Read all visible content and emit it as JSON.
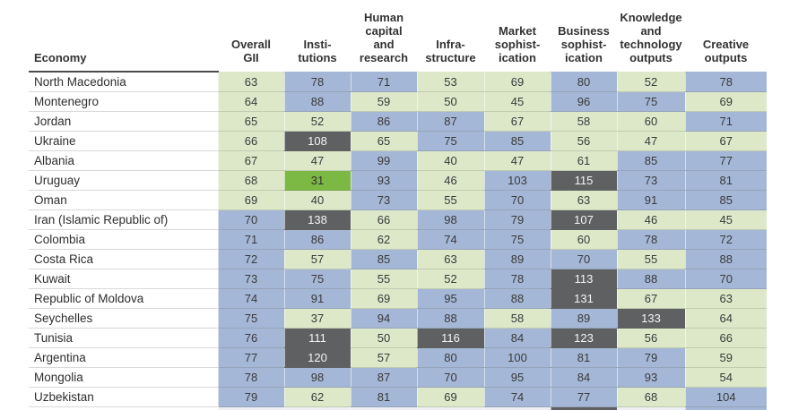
{
  "colors": {
    "green": "#dde8c9",
    "blue": "#a5b7d6",
    "dark": "#5f6062",
    "bright": "#7cb944",
    "pale": "#edeff2",
    "rule_dark": "#4a4a4c",
    "rule_accent": "#94b272"
  },
  "table": {
    "columns": [
      {
        "key": "economy",
        "label": "Economy"
      },
      {
        "key": "overall_gii",
        "label": "Overall\nGII"
      },
      {
        "key": "institutions",
        "label": "Insti-\ntutions"
      },
      {
        "key": "human_capital_research",
        "label": "Human\ncapital\nand\nresearch"
      },
      {
        "key": "infrastructure",
        "label": "Infra-\nstructure"
      },
      {
        "key": "market_sophistication",
        "label": "Market\nsophist-\nication"
      },
      {
        "key": "business_sophistication",
        "label": "Business\nsophist-\nication"
      },
      {
        "key": "knowledge_technology_outputs",
        "label": "Knowledge\nand\ntechnology\noutputs"
      },
      {
        "key": "creative_outputs",
        "label": "Creative\noutputs"
      }
    ],
    "rows": [
      {
        "economy": "North Macedonia",
        "cells": [
          {
            "value": 63,
            "band": "green"
          },
          {
            "value": 78,
            "band": "blue"
          },
          {
            "value": 71,
            "band": "blue"
          },
          {
            "value": 53,
            "band": "green"
          },
          {
            "value": 69,
            "band": "green"
          },
          {
            "value": 80,
            "band": "blue"
          },
          {
            "value": 52,
            "band": "green"
          },
          {
            "value": 78,
            "band": "blue"
          }
        ]
      },
      {
        "economy": "Montenegro",
        "cells": [
          {
            "value": 64,
            "band": "green"
          },
          {
            "value": 88,
            "band": "blue"
          },
          {
            "value": 59,
            "band": "green"
          },
          {
            "value": 50,
            "band": "green"
          },
          {
            "value": 45,
            "band": "green"
          },
          {
            "value": 96,
            "band": "blue"
          },
          {
            "value": 75,
            "band": "blue"
          },
          {
            "value": 69,
            "band": "green"
          }
        ]
      },
      {
        "economy": "Jordan",
        "cells": [
          {
            "value": 65,
            "band": "green"
          },
          {
            "value": 52,
            "band": "green"
          },
          {
            "value": 86,
            "band": "blue"
          },
          {
            "value": 87,
            "band": "blue"
          },
          {
            "value": 67,
            "band": "green"
          },
          {
            "value": 58,
            "band": "green"
          },
          {
            "value": 60,
            "band": "green"
          },
          {
            "value": 71,
            "band": "blue"
          }
        ]
      },
      {
        "economy": "Ukraine",
        "cells": [
          {
            "value": 66,
            "band": "green"
          },
          {
            "value": 108,
            "band": "dark"
          },
          {
            "value": 65,
            "band": "green"
          },
          {
            "value": 75,
            "band": "blue"
          },
          {
            "value": 85,
            "band": "blue"
          },
          {
            "value": 56,
            "band": "green"
          },
          {
            "value": 47,
            "band": "green"
          },
          {
            "value": 67,
            "band": "green"
          }
        ]
      },
      {
        "economy": "Albania",
        "cells": [
          {
            "value": 67,
            "band": "green"
          },
          {
            "value": 47,
            "band": "green"
          },
          {
            "value": 99,
            "band": "blue"
          },
          {
            "value": 40,
            "band": "green"
          },
          {
            "value": 47,
            "band": "green"
          },
          {
            "value": 61,
            "band": "green"
          },
          {
            "value": 85,
            "band": "blue"
          },
          {
            "value": 77,
            "band": "blue"
          }
        ]
      },
      {
        "economy": "Uruguay",
        "cells": [
          {
            "value": 68,
            "band": "green"
          },
          {
            "value": 31,
            "band": "bright"
          },
          {
            "value": 93,
            "band": "blue"
          },
          {
            "value": 46,
            "band": "green"
          },
          {
            "value": 103,
            "band": "blue"
          },
          {
            "value": 115,
            "band": "dark"
          },
          {
            "value": 73,
            "band": "blue"
          },
          {
            "value": 81,
            "band": "blue"
          }
        ]
      },
      {
        "economy": "Oman",
        "cells": [
          {
            "value": 69,
            "band": "green"
          },
          {
            "value": 40,
            "band": "green"
          },
          {
            "value": 73,
            "band": "blue"
          },
          {
            "value": 55,
            "band": "green"
          },
          {
            "value": 70,
            "band": "blue"
          },
          {
            "value": 63,
            "band": "green"
          },
          {
            "value": 91,
            "band": "blue"
          },
          {
            "value": 85,
            "band": "blue"
          }
        ]
      },
      {
        "economy": "Iran (Islamic Republic of)",
        "cells": [
          {
            "value": 70,
            "band": "blue"
          },
          {
            "value": 138,
            "band": "dark"
          },
          {
            "value": 66,
            "band": "green"
          },
          {
            "value": 98,
            "band": "blue"
          },
          {
            "value": 79,
            "band": "blue"
          },
          {
            "value": 107,
            "band": "dark"
          },
          {
            "value": 46,
            "band": "green"
          },
          {
            "value": 45,
            "band": "green"
          }
        ]
      },
      {
        "economy": "Colombia",
        "cells": [
          {
            "value": 71,
            "band": "blue"
          },
          {
            "value": 86,
            "band": "blue"
          },
          {
            "value": 62,
            "band": "green"
          },
          {
            "value": 74,
            "band": "blue"
          },
          {
            "value": 75,
            "band": "blue"
          },
          {
            "value": 60,
            "band": "green"
          },
          {
            "value": 78,
            "band": "blue"
          },
          {
            "value": 72,
            "band": "blue"
          }
        ]
      },
      {
        "economy": "Costa Rica",
        "cells": [
          {
            "value": 72,
            "band": "blue"
          },
          {
            "value": 57,
            "band": "green"
          },
          {
            "value": 85,
            "band": "blue"
          },
          {
            "value": 63,
            "band": "green"
          },
          {
            "value": 89,
            "band": "blue"
          },
          {
            "value": 70,
            "band": "blue"
          },
          {
            "value": 55,
            "band": "green"
          },
          {
            "value": 88,
            "band": "blue"
          }
        ]
      },
      {
        "economy": "Kuwait",
        "cells": [
          {
            "value": 73,
            "band": "blue"
          },
          {
            "value": 75,
            "band": "blue"
          },
          {
            "value": 55,
            "band": "green"
          },
          {
            "value": 52,
            "band": "green"
          },
          {
            "value": 78,
            "band": "blue"
          },
          {
            "value": 113,
            "band": "dark"
          },
          {
            "value": 88,
            "band": "blue"
          },
          {
            "value": 70,
            "band": "blue"
          }
        ]
      },
      {
        "economy": "Republic of Moldova",
        "cells": [
          {
            "value": 74,
            "band": "blue"
          },
          {
            "value": 91,
            "band": "blue"
          },
          {
            "value": 69,
            "band": "green"
          },
          {
            "value": 95,
            "band": "blue"
          },
          {
            "value": 88,
            "band": "blue"
          },
          {
            "value": 131,
            "band": "dark"
          },
          {
            "value": 67,
            "band": "green"
          },
          {
            "value": 63,
            "band": "green"
          }
        ]
      },
      {
        "economy": "Seychelles",
        "cells": [
          {
            "value": 75,
            "band": "blue"
          },
          {
            "value": 37,
            "band": "green"
          },
          {
            "value": 94,
            "band": "blue"
          },
          {
            "value": 88,
            "band": "blue"
          },
          {
            "value": 58,
            "band": "green"
          },
          {
            "value": 89,
            "band": "blue"
          },
          {
            "value": 133,
            "band": "dark"
          },
          {
            "value": 64,
            "band": "green"
          }
        ]
      },
      {
        "economy": "Tunisia",
        "cells": [
          {
            "value": 76,
            "band": "blue"
          },
          {
            "value": 111,
            "band": "dark"
          },
          {
            "value": 50,
            "band": "green"
          },
          {
            "value": 116,
            "band": "dark"
          },
          {
            "value": 84,
            "band": "blue"
          },
          {
            "value": 123,
            "band": "dark"
          },
          {
            "value": 56,
            "band": "green"
          },
          {
            "value": 66,
            "band": "green"
          }
        ]
      },
      {
        "economy": "Argentina",
        "cells": [
          {
            "value": 77,
            "band": "blue"
          },
          {
            "value": 120,
            "band": "dark"
          },
          {
            "value": 57,
            "band": "green"
          },
          {
            "value": 80,
            "band": "blue"
          },
          {
            "value": 100,
            "band": "blue"
          },
          {
            "value": 81,
            "band": "blue"
          },
          {
            "value": 79,
            "band": "blue"
          },
          {
            "value": 59,
            "band": "green"
          }
        ]
      },
      {
        "economy": "Mongolia",
        "cells": [
          {
            "value": 78,
            "band": "blue"
          },
          {
            "value": 98,
            "band": "blue"
          },
          {
            "value": 87,
            "band": "blue"
          },
          {
            "value": 70,
            "band": "blue"
          },
          {
            "value": 95,
            "band": "blue"
          },
          {
            "value": 84,
            "band": "blue"
          },
          {
            "value": 93,
            "band": "blue"
          },
          {
            "value": 54,
            "band": "green"
          }
        ]
      },
      {
        "economy": "Uzbekistan",
        "cells": [
          {
            "value": 79,
            "band": "blue"
          },
          {
            "value": 62,
            "band": "green"
          },
          {
            "value": 81,
            "band": "blue"
          },
          {
            "value": 69,
            "band": "green"
          },
          {
            "value": 74,
            "band": "blue"
          },
          {
            "value": 77,
            "band": "blue"
          },
          {
            "value": 68,
            "band": "green"
          },
          {
            "value": 104,
            "band": "blue"
          }
        ]
      }
    ],
    "partial_next_row_bands": [
      "pale",
      "pale",
      "pale",
      "pale",
      "pale",
      "dark",
      "pale",
      "blue"
    ]
  }
}
